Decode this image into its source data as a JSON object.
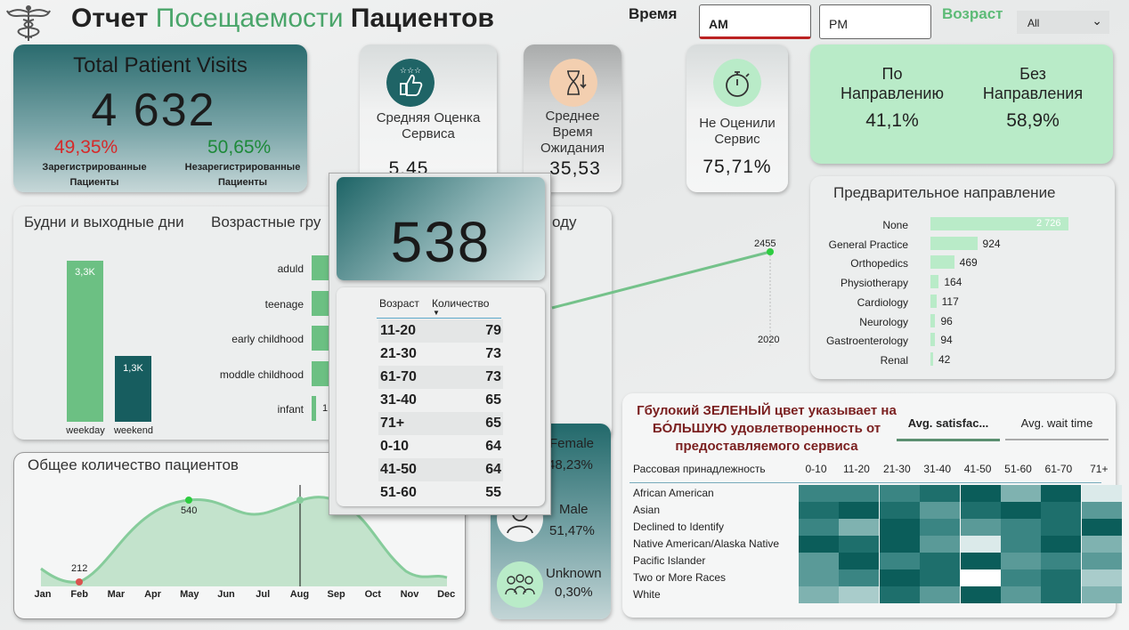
{
  "header": {
    "title_part1": "Отчет ",
    "title_part2": "Посещаемости",
    "title_part3": " Пациентов",
    "time_label": "Время",
    "time_am": "AM",
    "time_pm": "PM",
    "age_label": "Возраст",
    "age_selected": "All"
  },
  "total": {
    "title": "Total Patient Visits",
    "value": "4 632",
    "registered_pct": "49,35%",
    "registered_label": "Зарегистрированные Пациенты",
    "unregistered_pct": "50,65%",
    "unregistered_label": "Незарегистрированные Пациенты"
  },
  "kpis": [
    {
      "label": "Средняя Оценка Сервиса",
      "value": "5,45",
      "icon": "thumbs-up-icon"
    },
    {
      "label": "Среднее Время Ожидания",
      "value": "35,53",
      "icon": "hourglass-icon"
    },
    {
      "label": "Не Оценили Сервис",
      "value": "75,71%",
      "icon": "stopwatch-icon"
    }
  ],
  "referral": {
    "col1_label": "По Направлению",
    "col1_value": "41,1%",
    "col2_label": "Без Направления",
    "col2_value": "58,9%"
  },
  "weekday": {
    "title": "Будни и выходные дни",
    "bars": [
      {
        "label": "weekday",
        "value_label": "3,3K",
        "value": 3.3
      },
      {
        "label": "weekend",
        "value_label": "1,3K",
        "value": 1.3
      }
    ]
  },
  "age_groups": {
    "title": "Возрастные гру",
    "items": [
      "aduld",
      "teenage",
      "early childhood",
      "moddle childhood",
      "infant"
    ],
    "visible_value": "1"
  },
  "yearly": {
    "title_fragment": "оду",
    "point_label": "2455",
    "x_label": "2020"
  },
  "monthly": {
    "title": "Общее количество пациентов",
    "months": [
      "Jan",
      "Feb",
      "Mar",
      "Apr",
      "May",
      "Jun",
      "Jul",
      "Aug",
      "Sep",
      "Oct",
      "Nov",
      "Dec"
    ],
    "min_label": "212",
    "max_label": "540"
  },
  "gender": {
    "female_label": "Female",
    "female_pct": "48,23%",
    "male_label": "Male",
    "male_pct": "51,47%",
    "unknown_label": "Unknown",
    "unknown_pct": "0,30%"
  },
  "refbars": {
    "title": "Предварительное направление",
    "items": [
      {
        "label": "None",
        "value": 2726,
        "value_label": "2 726"
      },
      {
        "label": "General Practice",
        "value": 924,
        "value_label": "924"
      },
      {
        "label": "Orthopedics",
        "value": 469,
        "value_label": "469"
      },
      {
        "label": "Physiotherapy",
        "value": 164,
        "value_label": "164"
      },
      {
        "label": "Cardiology",
        "value": 117,
        "value_label": "117"
      },
      {
        "label": "Neurology",
        "value": 96,
        "value_label": "96"
      },
      {
        "label": "Gastroenterology",
        "value": 94,
        "value_label": "94"
      },
      {
        "label": "Renal",
        "value": 42,
        "value_label": "42"
      }
    ]
  },
  "heatmap": {
    "note": "Гбулокий ЗЕЛЕНЫЙ цвет указывает на БО́ЛЬШУЮ удовлетворенность от предоставляемого сервиса",
    "tab_active": "Avg. satisfac...",
    "tab_other": "Avg. wait time",
    "row_header": "Рассовая принадлежность",
    "columns": [
      "0-10",
      "11-20",
      "21-30",
      "31-40",
      "41-50",
      "51-60",
      "61-70",
      "71+"
    ],
    "rows": [
      "African American",
      "Asian",
      "Declined to Identify",
      "Native American/Alaska Native",
      "Pacific Islander",
      "Two or More Races",
      "White"
    ]
  },
  "tooltip": {
    "value": "538",
    "col1": "Возраст",
    "col2": "Количество",
    "rows": [
      {
        "age": "11-20",
        "count": "79"
      },
      {
        "age": "21-30",
        "count": "73"
      },
      {
        "age": "61-70",
        "count": "73"
      },
      {
        "age": "31-40",
        "count": "65"
      },
      {
        "age": "71+",
        "count": "65"
      },
      {
        "age": "0-10",
        "count": "64"
      },
      {
        "age": "41-50",
        "count": "64"
      },
      {
        "age": "51-60",
        "count": "55"
      }
    ]
  }
}
